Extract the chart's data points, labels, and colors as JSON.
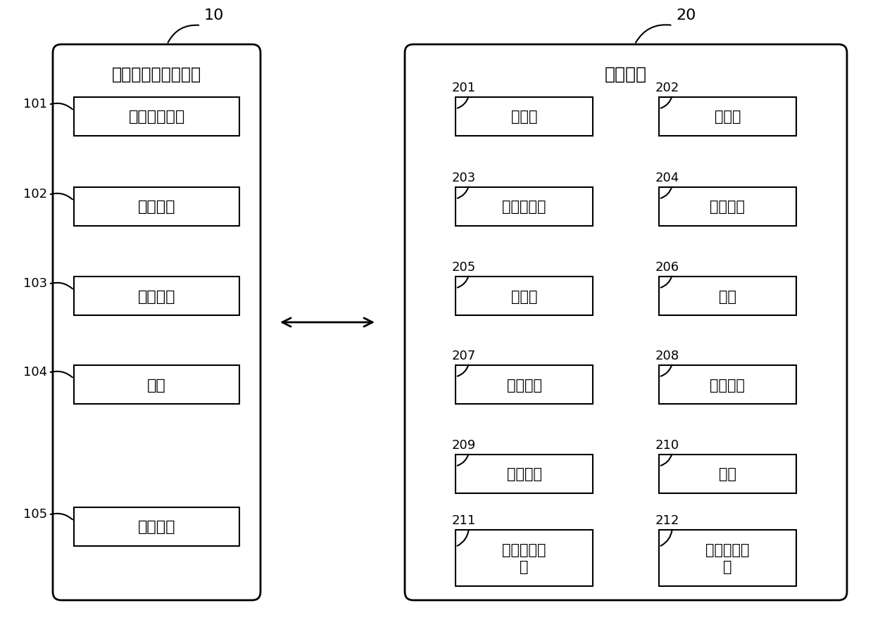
{
  "bg_color": "#ffffff",
  "line_color": "#000000",
  "box_fill": "#ffffff",
  "font_color": "#000000",
  "left_box_label": "便携式汽车控制装置",
  "left_box_id": "10",
  "left_items": [
    {
      "id": "101",
      "text": "信息获取单元"
    },
    {
      "id": "102",
      "text": "通信单元"
    },
    {
      "id": "103",
      "text": "控制单元"
    },
    {
      "id": "104",
      "text": "接口"
    },
    {
      "id": "105",
      "text": "切换按键"
    }
  ],
  "right_box_label": "汽车装置",
  "right_box_id": "20",
  "right_left_items": [
    {
      "id": "201",
      "text": "固定座"
    },
    {
      "id": "203",
      "text": "前挡风玻璃"
    },
    {
      "id": "205",
      "text": "驱动器"
    },
    {
      "id": "207",
      "text": "通信单元"
    },
    {
      "id": "209",
      "text": "处理单元"
    },
    {
      "id": "211",
      "text": "坐高测量装\n置"
    }
  ],
  "right_right_items": [
    {
      "id": "202",
      "text": "投影机"
    },
    {
      "id": "204",
      "text": "调光薄膜"
    },
    {
      "id": "206",
      "text": "门锁"
    },
    {
      "id": "208",
      "text": "存储单元"
    },
    {
      "id": "210",
      "text": "电源"
    },
    {
      "id": "212",
      "text": "行车信息装\n置"
    }
  ]
}
